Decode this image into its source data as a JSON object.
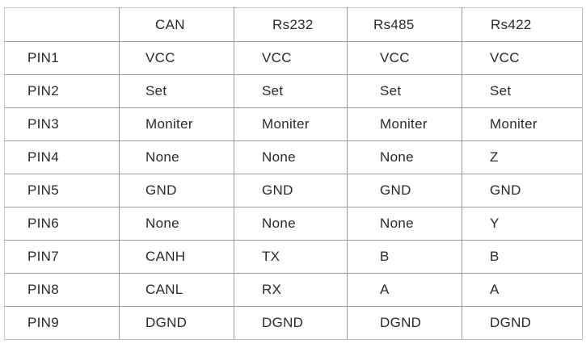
{
  "table": {
    "headers": [
      "",
      "CAN",
      "Rs232",
      "Rs485",
      "Rs422"
    ],
    "rows": [
      [
        "PIN1",
        "VCC",
        "VCC",
        "VCC",
        "VCC"
      ],
      [
        "PIN2",
        "Set",
        "Set",
        "Set",
        "Set"
      ],
      [
        "PIN3",
        "Moniter",
        "Moniter",
        "Moniter",
        "Moniter"
      ],
      [
        "PIN4",
        "None",
        "None",
        "None",
        "Z"
      ],
      [
        "PIN5",
        "GND",
        "GND",
        "GND",
        "GND"
      ],
      [
        "PIN6",
        "None",
        "None",
        "None",
        "Y"
      ],
      [
        "PIN7",
        "CANH",
        "TX",
        "B",
        "B"
      ],
      [
        "PIN8",
        "CANL",
        "RX",
        "A",
        "A"
      ],
      [
        "PIN9",
        "DGND",
        "DGND",
        "DGND",
        "DGND"
      ]
    ]
  }
}
